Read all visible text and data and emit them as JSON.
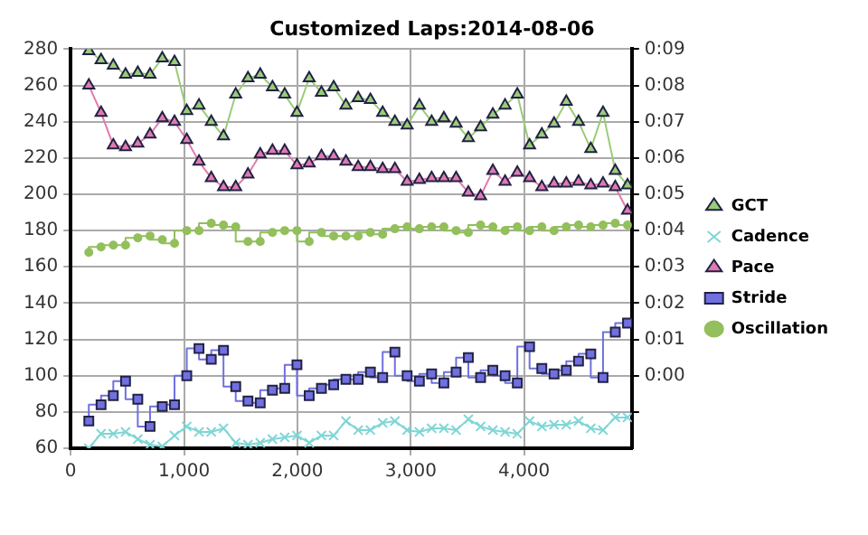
{
  "chart_data": {
    "type": "line",
    "title": "Customized Laps:2014-08-06",
    "x": [
      160,
      268,
      376,
      484,
      592,
      700,
      808,
      916,
      1024,
      1132,
      1240,
      1348,
      1456,
      1564,
      1672,
      1780,
      1888,
      1996,
      2104,
      2212,
      2320,
      2428,
      2536,
      2644,
      2752,
      2860,
      2968,
      3076,
      3184,
      3292,
      3400,
      3508,
      3616,
      3724,
      3832,
      3940,
      4048,
      4156,
      4264,
      4372,
      4480,
      4588,
      4696,
      4804,
      4912
    ],
    "series": [
      {
        "name": "GCT",
        "type": "line",
        "marker": "triangle",
        "color": "#99cc77",
        "values": [
          279,
          274,
          271,
          266,
          267,
          266,
          275,
          273,
          246,
          249,
          240,
          232,
          255,
          264,
          266,
          259,
          255,
          245,
          264,
          256,
          259,
          249,
          253,
          252,
          245,
          240,
          238,
          249,
          240,
          242,
          239,
          231,
          237,
          244,
          249,
          255,
          227,
          233,
          239,
          251,
          240,
          225,
          245,
          213,
          205
        ]
      },
      {
        "name": "Cadence",
        "type": "line",
        "marker": "cross",
        "color": "#7fd6d6",
        "values": [
          60,
          68,
          68,
          69,
          65,
          62,
          61,
          67,
          72,
          69,
          69,
          71,
          63,
          62,
          63,
          65,
          66,
          67,
          63,
          67,
          67,
          75,
          70,
          70,
          74,
          75,
          70,
          69,
          71,
          71,
          70,
          76,
          72,
          70,
          69,
          68,
          75,
          72,
          73,
          73,
          75,
          71,
          70,
          77,
          77
        ]
      },
      {
        "name": "Pace",
        "type": "line",
        "marker": "triangle",
        "color": "#e07ab0",
        "values": [
          260,
          245,
          227,
          226,
          228,
          233,
          242,
          240,
          230,
          218,
          209,
          204,
          204,
          211,
          222,
          224,
          224,
          216,
          217,
          221,
          221,
          218,
          215,
          215,
          214,
          214,
          207,
          208,
          209,
          209,
          209,
          201,
          199,
          213,
          207,
          212,
          209,
          204,
          206,
          206,
          207,
          205,
          206,
          204,
          191
        ]
      },
      {
        "name": "Stride",
        "type": "step",
        "marker": "square",
        "color": "#7070e0",
        "values": [
          75,
          84,
          89,
          97,
          87,
          72,
          83,
          84,
          100,
          115,
          109,
          114,
          94,
          86,
          85,
          92,
          93,
          106,
          89,
          93,
          95,
          98,
          98,
          102,
          99,
          113,
          100,
          97,
          101,
          96,
          102,
          110,
          99,
          103,
          100,
          96,
          116,
          104,
          101,
          103,
          108,
          112,
          99,
          124,
          129
        ]
      },
      {
        "name": "Oscillation",
        "type": "step",
        "marker": "circle",
        "color": "#93bf5c",
        "values": [
          168,
          171,
          172,
          172,
          176,
          177,
          175,
          173,
          180,
          180,
          184,
          183,
          182,
          174,
          174,
          179,
          180,
          180,
          174,
          179,
          177,
          177,
          177,
          179,
          178,
          181,
          182,
          181,
          182,
          182,
          180,
          179,
          183,
          182,
          180,
          182,
          180,
          182,
          180,
          182,
          183,
          182,
          183,
          184,
          183
        ]
      }
    ],
    "xlim": [
      0,
      4950
    ],
    "xticks": [
      0,
      {
        "value": 1000,
        "label": "1,000"
      },
      {
        "value": 2000,
        "label": "2,000"
      },
      {
        "value": 3000,
        "label": "3,000"
      },
      {
        "value": 4000,
        "label": "4,000"
      }
    ],
    "ylim": [
      60,
      280
    ],
    "yticks": [
      60,
      80,
      100,
      120,
      140,
      160,
      180,
      200,
      220,
      240,
      260,
      280
    ],
    "y2lim": [
      -2,
      9
    ],
    "y2ticks": [
      {
        "value": -1,
        "label": null
      },
      {
        "value": 0,
        "label": "0:00"
      },
      {
        "value": 1,
        "label": "0:01"
      },
      {
        "value": 2,
        "label": "0:02"
      },
      {
        "value": 3,
        "label": "0:03"
      },
      {
        "value": 4,
        "label": "0:04"
      },
      {
        "value": 5,
        "label": "0:05"
      },
      {
        "value": 6,
        "label": "0:06"
      },
      {
        "value": 7,
        "label": "0:07"
      },
      {
        "value": 8,
        "label": "0:08"
      },
      {
        "value": 9,
        "label": "0:09"
      }
    ],
    "grid": true,
    "legend": "right"
  }
}
